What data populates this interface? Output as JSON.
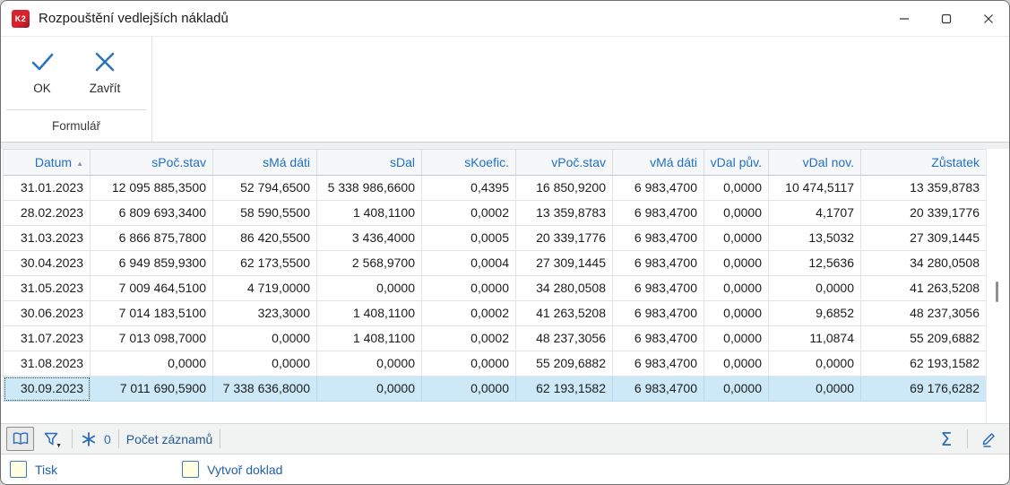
{
  "window": {
    "title": "Rozpouštění vedlejších nákladů",
    "icon_text": "K2"
  },
  "ribbon": {
    "ok_label": "OK",
    "close_label": "Zavřít",
    "group_label": "Formulář"
  },
  "table": {
    "columns": [
      "Datum",
      "sPoč.stav",
      "sMá dáti",
      "sDal",
      "sKoefic.",
      "vPoč.stav",
      "vMá dáti",
      "vDal pův.",
      "vDal nov.",
      "Zůstatek"
    ],
    "sort": {
      "column_index": 0,
      "direction": "asc",
      "arrow": "▲"
    },
    "selected_row_index": 8,
    "rows": [
      [
        "31.01.2023",
        "12 095 885,3500",
        "52 794,6500",
        "5 338 986,6600",
        "0,4395",
        "16 850,9200",
        "6 983,4700",
        "0,0000",
        "10 474,5117",
        "13 359,8783"
      ],
      [
        "28.02.2023",
        "6 809 693,3400",
        "58 590,5500",
        "1 408,1100",
        "0,0002",
        "13 359,8783",
        "6 983,4700",
        "0,0000",
        "4,1707",
        "20 339,1776"
      ],
      [
        "31.03.2023",
        "6 866 875,7800",
        "86 420,5500",
        "3 436,4000",
        "0,0005",
        "20 339,1776",
        "6 983,4700",
        "0,0000",
        "13,5032",
        "27 309,1445"
      ],
      [
        "30.04.2023",
        "6 949 859,9300",
        "62 173,5500",
        "2 568,9700",
        "0,0004",
        "27 309,1445",
        "6 983,4700",
        "0,0000",
        "12,5636",
        "34 280,0508"
      ],
      [
        "31.05.2023",
        "7 009 464,5100",
        "4 719,0000",
        "0,0000",
        "0,0000",
        "34 280,0508",
        "6 983,4700",
        "0,0000",
        "0,0000",
        "41 263,5208"
      ],
      [
        "30.06.2023",
        "7 014 183,5100",
        "323,3000",
        "1 408,1100",
        "0,0002",
        "41 263,5208",
        "6 983,4700",
        "0,0000",
        "9,6852",
        "48 237,3056"
      ],
      [
        "31.07.2023",
        "7 013 098,7000",
        "0,0000",
        "1 408,1100",
        "0,0002",
        "48 237,3056",
        "6 983,4700",
        "0,0000",
        "11,0874",
        "55 209,6882"
      ],
      [
        "31.08.2023",
        "0,0000",
        "0,0000",
        "0,0000",
        "0,0000",
        "55 209,6882",
        "6 983,4700",
        "0,0000",
        "0,0000",
        "62 193,1582"
      ],
      [
        "30.09.2023",
        "7 011 690,5900",
        "7 338 636,8000",
        "0,0000",
        "0,0000",
        "62 193,1582",
        "6 983,4700",
        "0,0000",
        "0,0000",
        "69 176,6282"
      ]
    ]
  },
  "status_bar": {
    "counter_value": "0",
    "counter_label": "Počet záznamů",
    "sum_glyph": "Σ"
  },
  "footer": {
    "checkbox1_label": "Tisk",
    "checkbox2_label": "Vytvoř doklad"
  },
  "colors": {
    "accent_blue": "#2b6cb5",
    "header_text_blue": "#1f6fc5",
    "selected_row_bg": "#cde9f8",
    "checkbox_fill": "#ffffe1",
    "app_icon_red": "#d8232f"
  }
}
